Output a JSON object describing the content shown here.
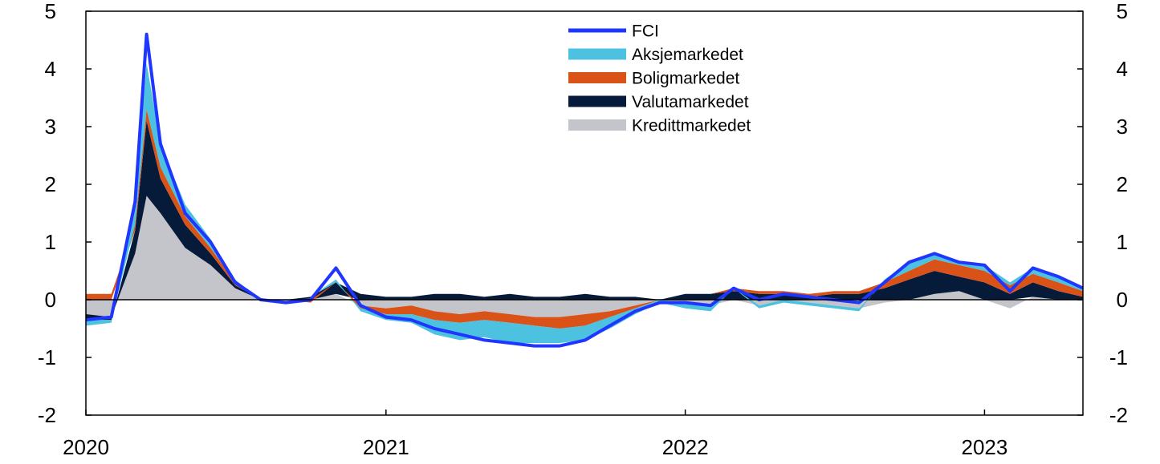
{
  "chart_data": {
    "type": "area",
    "title": "",
    "xlabel": "",
    "ylabel": "",
    "ylim": [
      -2,
      5
    ],
    "y_ticks": [
      5,
      4,
      3,
      2,
      1,
      0,
      -1,
      -2
    ],
    "x_ticks": [
      "2020",
      "2021",
      "2022",
      "2023"
    ],
    "xlim": [
      "2020-01-01",
      "2023-05-01"
    ],
    "grid": false,
    "legend_position": "top-center",
    "dates": [
      "2020-01-01",
      "2020-02-01",
      "2020-03-01",
      "2020-03-15",
      "2020-04-01",
      "2020-05-01",
      "2020-06-01",
      "2020-07-01",
      "2020-08-01",
      "2020-09-01",
      "2020-10-01",
      "2020-11-01",
      "2020-12-01",
      "2021-01-01",
      "2021-02-01",
      "2021-03-01",
      "2021-04-01",
      "2021-05-01",
      "2021-06-01",
      "2021-07-01",
      "2021-08-01",
      "2021-09-01",
      "2021-10-01",
      "2021-11-01",
      "2021-12-01",
      "2022-01-01",
      "2022-02-01",
      "2022-03-01",
      "2022-04-01",
      "2022-05-01",
      "2022-06-01",
      "2022-07-01",
      "2022-08-01",
      "2022-09-01",
      "2022-10-01",
      "2022-11-01",
      "2022-12-01",
      "2023-01-01",
      "2023-02-01",
      "2023-03-01",
      "2023-04-01",
      "2023-05-01"
    ],
    "series": [
      {
        "name": "Kredittmarkedet",
        "color": "#c4c5ca",
        "values": [
          -0.25,
          -0.3,
          0.8,
          1.8,
          1.5,
          0.9,
          0.6,
          0.2,
          0.0,
          -0.05,
          0.0,
          0.1,
          -0.1,
          -0.15,
          -0.1,
          -0.2,
          -0.25,
          -0.2,
          -0.25,
          -0.3,
          -0.3,
          -0.25,
          -0.2,
          -0.1,
          0.0,
          -0.05,
          -0.1,
          0.0,
          -0.1,
          0.0,
          -0.05,
          -0.1,
          -0.15,
          -0.05,
          0.0,
          0.1,
          0.15,
          0.0,
          -0.15,
          0.05,
          0.0,
          0.0
        ]
      },
      {
        "name": "Valutamarkedet",
        "color": "#061a3a",
        "values": [
          -0.1,
          -0.05,
          0.4,
          1.3,
          0.6,
          0.4,
          0.2,
          0.05,
          0.0,
          0.0,
          0.05,
          0.2,
          0.1,
          0.05,
          0.05,
          0.1,
          0.1,
          0.05,
          0.1,
          0.05,
          0.05,
          0.1,
          0.05,
          0.05,
          0.0,
          0.1,
          0.1,
          0.15,
          0.1,
          0.1,
          0.05,
          0.1,
          0.1,
          0.2,
          0.35,
          0.4,
          0.25,
          0.3,
          0.1,
          0.25,
          0.15,
          0.05
        ]
      },
      {
        "name": "Boligmarkedet",
        "color": "#d95319",
        "values": [
          0.1,
          0.1,
          0.1,
          0.2,
          0.2,
          0.15,
          0.1,
          0.05,
          0.0,
          0.0,
          -0.05,
          0.0,
          -0.05,
          -0.1,
          -0.15,
          -0.15,
          -0.15,
          -0.15,
          -0.15,
          -0.15,
          -0.2,
          -0.2,
          -0.1,
          -0.05,
          0.0,
          0.0,
          0.0,
          0.05,
          0.05,
          0.05,
          0.05,
          0.05,
          0.05,
          0.1,
          0.15,
          0.2,
          0.2,
          0.2,
          0.15,
          0.15,
          0.15,
          0.1
        ]
      },
      {
        "name": "Aksjemarkedet",
        "color": "#4cc1e0",
        "values": [
          -0.1,
          -0.05,
          0.4,
          0.8,
          0.4,
          0.2,
          0.15,
          0.05,
          0.0,
          0.0,
          0.0,
          0.05,
          -0.05,
          -0.1,
          -0.15,
          -0.25,
          -0.3,
          -0.3,
          -0.35,
          -0.3,
          -0.25,
          -0.25,
          -0.2,
          -0.1,
          -0.05,
          -0.1,
          -0.1,
          0.0,
          -0.05,
          -0.05,
          -0.05,
          -0.05,
          -0.05,
          0.05,
          0.15,
          0.1,
          0.05,
          0.1,
          0.05,
          0.1,
          0.1,
          0.05
        ]
      },
      {
        "name": "FCI",
        "color": "#1f36ff",
        "values": [
          -0.35,
          -0.3,
          1.7,
          4.6,
          2.7,
          1.5,
          1.0,
          0.3,
          0.0,
          -0.05,
          0.0,
          0.55,
          -0.1,
          -0.3,
          -0.35,
          -0.5,
          -0.6,
          -0.7,
          -0.75,
          -0.8,
          -0.8,
          -0.7,
          -0.45,
          -0.2,
          -0.05,
          -0.05,
          -0.1,
          0.2,
          0.0,
          0.1,
          0.05,
          0.0,
          -0.05,
          0.3,
          0.65,
          0.8,
          0.65,
          0.6,
          0.15,
          0.55,
          0.4,
          0.2
        ]
      }
    ]
  }
}
